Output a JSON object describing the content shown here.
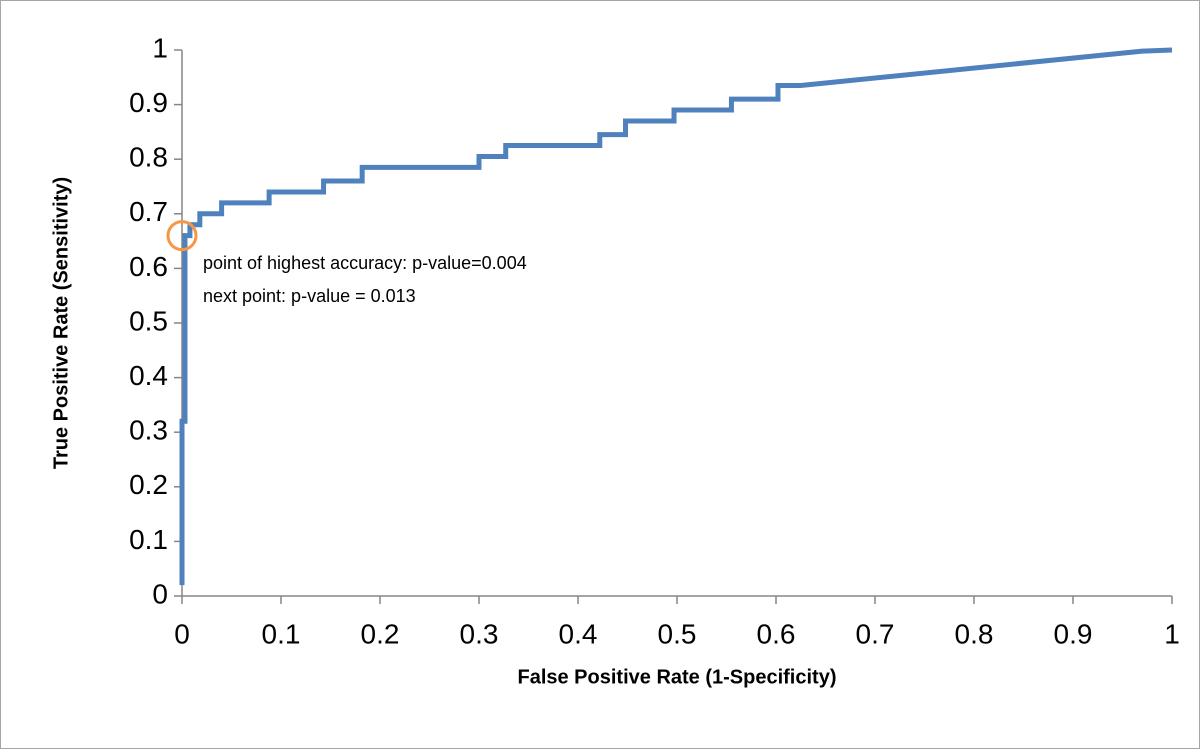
{
  "chart_data": {
    "type": "line",
    "xlabel": "False Positive Rate (1-Specificity)",
    "ylabel": "True Positive Rate (Sensitivity)",
    "annotations": [
      "point of highest accuracy: p-value=0.004",
      "next point: p-value = 0.013"
    ],
    "highlight": {
      "x": 0,
      "y": 0.66,
      "color": "#f79646"
    },
    "xlim": [
      0,
      1
    ],
    "ylim": [
      0,
      1
    ],
    "xticks": [
      0,
      0.1,
      0.2,
      0.3,
      0.4,
      0.5,
      0.6,
      0.7,
      0.8,
      0.9,
      1
    ],
    "yticks": [
      0,
      0.1,
      0.2,
      0.3,
      0.4,
      0.5,
      0.6,
      0.7,
      0.8,
      0.9,
      1
    ],
    "grid": false,
    "series": [
      {
        "color": "#4f81bd",
        "x": [
          0,
          0,
          0.003,
          0.003,
          0.008,
          0.008,
          0.018,
          0.018,
          0.04,
          0.04,
          0.088,
          0.088,
          0.143,
          0.143,
          0.182,
          0.182,
          0.3,
          0.3,
          0.327,
          0.327,
          0.422,
          0.422,
          0.448,
          0.448,
          0.497,
          0.497,
          0.555,
          0.555,
          0.602,
          0.602,
          0.625,
          0.97,
          1
        ],
        "values": [
          0.02,
          0.32,
          0.32,
          0.66,
          0.66,
          0.68,
          0.68,
          0.7,
          0.7,
          0.72,
          0.72,
          0.74,
          0.74,
          0.76,
          0.76,
          0.785,
          0.785,
          0.805,
          0.805,
          0.825,
          0.825,
          0.845,
          0.845,
          0.87,
          0.87,
          0.89,
          0.89,
          0.91,
          0.91,
          0.935,
          0.935,
          0.998,
          1
        ]
      }
    ]
  }
}
